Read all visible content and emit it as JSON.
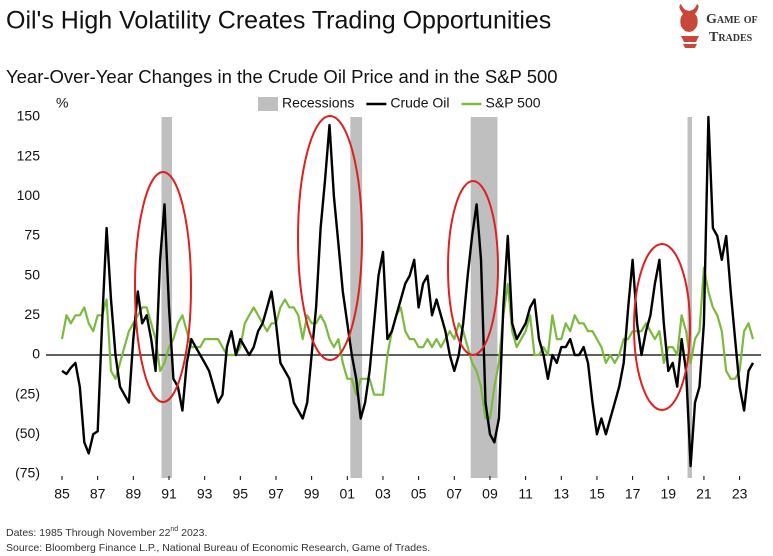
{
  "chart_data": {
    "type": "line",
    "title": "Oil's High Volatility Creates Trading Opportunities",
    "subtitle": "Year-Over-Year Changes in the Crude Oil Price and in the S&P 500",
    "y_label": "%",
    "logo": [
      "Game of",
      "Trades"
    ],
    "notes": {
      "dates_prefix": "Dates: 1985 Through November 22",
      "dates_sup": "nd",
      "dates_suffix": " 2023.",
      "source": "Source: Bloomberg Finance L.P., National Bureau of Economic Research, Game of Trades."
    },
    "recessions": {
      "name": "Recessions",
      "color": "#bfbfbf",
      "spans": [
        [
          1990.58,
          1991.17
        ],
        [
          2001.17,
          2001.83
        ],
        [
          2007.92,
          2009.42
        ],
        [
          2020.08,
          2020.33
        ]
      ]
    },
    "x": [
      1985,
      1985.25,
      1985.5,
      1985.75,
      1986,
      1986.25,
      1986.5,
      1986.75,
      1987,
      1987.25,
      1987.5,
      1987.75,
      1988,
      1988.25,
      1988.5,
      1988.75,
      1989,
      1989.25,
      1989.5,
      1989.75,
      1990,
      1990.25,
      1990.5,
      1990.75,
      1991,
      1991.25,
      1991.5,
      1991.75,
      1992,
      1992.25,
      1992.5,
      1992.75,
      1993,
      1993.25,
      1993.5,
      1993.75,
      1994,
      1994.25,
      1994.5,
      1994.75,
      1995,
      1995.25,
      1995.5,
      1995.75,
      1996,
      1996.25,
      1996.5,
      1996.75,
      1997,
      1997.25,
      1997.5,
      1997.75,
      1998,
      1998.25,
      1998.5,
      1998.75,
      1999,
      1999.25,
      1999.5,
      1999.75,
      2000,
      2000.25,
      2000.5,
      2000.75,
      2001,
      2001.25,
      2001.5,
      2001.75,
      2002,
      2002.25,
      2002.5,
      2002.75,
      2003,
      2003.25,
      2003.5,
      2003.75,
      2004,
      2004.25,
      2004.5,
      2004.75,
      2005,
      2005.25,
      2005.5,
      2005.75,
      2006,
      2006.25,
      2006.5,
      2006.75,
      2007,
      2007.25,
      2007.5,
      2007.75,
      2008,
      2008.25,
      2008.5,
      2008.75,
      2009,
      2009.25,
      2009.5,
      2009.75,
      2010,
      2010.25,
      2010.5,
      2010.75,
      2011,
      2011.25,
      2011.5,
      2011.75,
      2012,
      2012.25,
      2012.5,
      2012.75,
      2013,
      2013.25,
      2013.5,
      2013.75,
      2014,
      2014.25,
      2014.5,
      2014.75,
      2015,
      2015.25,
      2015.5,
      2015.75,
      2016,
      2016.25,
      2016.5,
      2016.75,
      2017,
      2017.25,
      2017.5,
      2017.75,
      2018,
      2018.25,
      2018.5,
      2018.75,
      2019,
      2019.25,
      2019.5,
      2019.75,
      2020,
      2020.25,
      2020.5,
      2020.75,
      2021,
      2021.25,
      2021.5,
      2021.75,
      2022,
      2022.25,
      2022.5,
      2022.75,
      2023,
      2023.25,
      2023.5,
      2023.75
    ],
    "series": [
      {
        "name": "Crude Oil",
        "color": "#000000",
        "values": [
          -10,
          -12,
          -8,
          -5,
          -20,
          -55,
          -62,
          -50,
          -48,
          20,
          80,
          35,
          0,
          -20,
          -25,
          -30,
          10,
          40,
          20,
          25,
          10,
          -10,
          60,
          95,
          30,
          -15,
          -20,
          -35,
          -5,
          10,
          5,
          0,
          -5,
          -10,
          -20,
          -30,
          -25,
          5,
          15,
          0,
          10,
          5,
          0,
          5,
          15,
          20,
          30,
          40,
          20,
          -5,
          -10,
          -15,
          -30,
          -35,
          -40,
          -30,
          0,
          30,
          80,
          110,
          145,
          100,
          70,
          40,
          20,
          0,
          -15,
          -40,
          -30,
          -10,
          20,
          50,
          65,
          10,
          15,
          25,
          35,
          45,
          50,
          60,
          30,
          45,
          50,
          25,
          35,
          25,
          15,
          0,
          -10,
          0,
          20,
          50,
          75,
          95,
          60,
          -30,
          -50,
          -55,
          -40,
          30,
          75,
          20,
          10,
          15,
          20,
          30,
          35,
          10,
          0,
          -15,
          0,
          -5,
          5,
          5,
          10,
          0,
          0,
          5,
          -5,
          -30,
          -50,
          -40,
          -50,
          -40,
          -30,
          -20,
          -5,
          30,
          60,
          20,
          0,
          15,
          25,
          45,
          60,
          20,
          -10,
          -5,
          -20,
          10,
          -10,
          -70,
          -30,
          -20,
          20,
          150,
          80,
          75,
          60,
          75,
          40,
          10,
          -20,
          -35,
          -10,
          -5
        ]
      },
      {
        "name": "S&P 500",
        "color": "#7cba3f",
        "values": [
          10,
          25,
          20,
          25,
          25,
          30,
          20,
          15,
          25,
          25,
          35,
          -10,
          -15,
          -5,
          5,
          15,
          20,
          25,
          30,
          30,
          20,
          10,
          -10,
          -5,
          5,
          10,
          20,
          25,
          15,
          5,
          5,
          5,
          10,
          10,
          10,
          10,
          5,
          0,
          0,
          0,
          5,
          20,
          25,
          30,
          25,
          20,
          15,
          20,
          20,
          30,
          35,
          30,
          30,
          25,
          10,
          25,
          20,
          20,
          25,
          20,
          10,
          5,
          10,
          -5,
          -15,
          -15,
          -25,
          -15,
          -15,
          -15,
          -25,
          -25,
          -25,
          0,
          15,
          25,
          30,
          15,
          10,
          10,
          5,
          5,
          10,
          5,
          10,
          5,
          10,
          15,
          10,
          20,
          15,
          5,
          -5,
          -10,
          -20,
          -40,
          -40,
          -20,
          -5,
          25,
          45,
          15,
          5,
          10,
          15,
          25,
          0,
          0,
          5,
          0,
          25,
          10,
          10,
          20,
          15,
          25,
          20,
          20,
          15,
          15,
          10,
          5,
          -5,
          0,
          -5,
          0,
          10,
          10,
          15,
          15,
          15,
          20,
          15,
          10,
          15,
          -5,
          5,
          5,
          0,
          25,
          15,
          -5,
          10,
          15,
          55,
          40,
          30,
          25,
          15,
          -10,
          -15,
          -15,
          -10,
          15,
          20,
          10
        ]
      }
    ],
    "xlim": [
      1985,
      2024.2
    ],
    "xticks": [
      {
        "value": 1985,
        "label": "85"
      },
      {
        "value": 1987,
        "label": "87"
      },
      {
        "value": 1989,
        "label": "89"
      },
      {
        "value": 1991,
        "label": "91"
      },
      {
        "value": 1993,
        "label": "93"
      },
      {
        "value": 1995,
        "label": "95"
      },
      {
        "value": 1997,
        "label": "97"
      },
      {
        "value": 1999,
        "label": "99"
      },
      {
        "value": 2001,
        "label": "01"
      },
      {
        "value": 2003,
        "label": "03"
      },
      {
        "value": 2005,
        "label": "05"
      },
      {
        "value": 2007,
        "label": "07"
      },
      {
        "value": 2009,
        "label": "09"
      },
      {
        "value": 2011,
        "label": "11"
      },
      {
        "value": 2013,
        "label": "13"
      },
      {
        "value": 2015,
        "label": "15"
      },
      {
        "value": 2017,
        "label": "17"
      },
      {
        "value": 2019,
        "label": "19"
      },
      {
        "value": 2021,
        "label": "21"
      },
      {
        "value": 2023,
        "label": "23"
      }
    ],
    "ylim": [
      -75,
      150
    ],
    "yticks": [
      150,
      125,
      100,
      75,
      50,
      25,
      0,
      {
        "value": -25,
        "label": "(25)"
      },
      {
        "value": -50,
        "label": "(50)"
      },
      {
        "value": -75,
        "label": "(75)"
      }
    ],
    "grid": false
  }
}
